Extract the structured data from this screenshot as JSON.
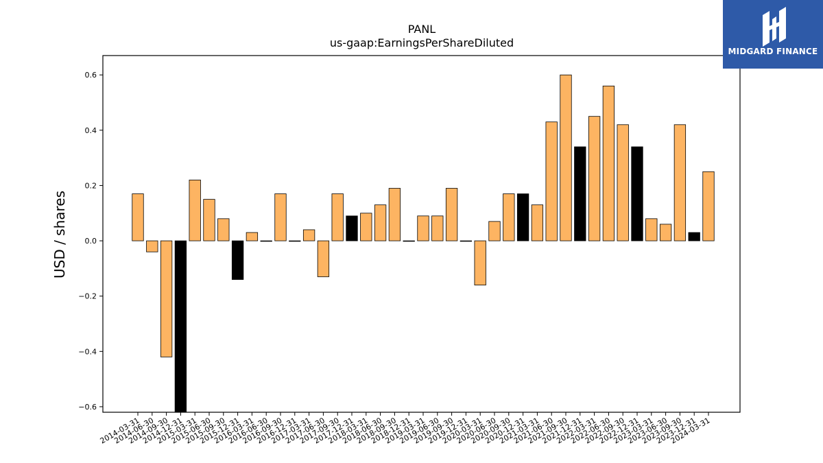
{
  "chart_data": {
    "type": "bar",
    "title": "PANL",
    "subtitle": "us-gaap:EarningsPerShareDiluted",
    "xlabel": "",
    "ylabel": "USD / shares",
    "ylim": [
      -0.62,
      0.67
    ],
    "yticks": [
      -0.6,
      -0.4,
      -0.2,
      0.0,
      0.2,
      0.4,
      0.6
    ],
    "ytick_labels": [
      "−0.6",
      "−0.4",
      "−0.2",
      "0.0",
      "0.2",
      "0.4",
      "0.6"
    ],
    "grid": false,
    "colors": {
      "quarterly": "#fdb462",
      "annual": "#000000",
      "edge": "#000000"
    },
    "categories": [
      "2014-03-31",
      "2014-06-30",
      "2014-09-30",
      "2014-12-31",
      "2015-03-31",
      "2015-06-30",
      "2015-09-30",
      "2015-12-31",
      "2016-03-31",
      "2016-06-30",
      "2016-09-30",
      "2016-12-31",
      "2017-03-31",
      "2017-06-30",
      "2017-09-30",
      "2017-12-31",
      "2018-03-31",
      "2018-06-30",
      "2018-09-30",
      "2018-12-31",
      "2019-03-31",
      "2019-06-30",
      "2019-09-30",
      "2019-12-31",
      "2020-03-31",
      "2020-06-30",
      "2020-09-30",
      "2020-12-31",
      "2021-03-31",
      "2021-06-30",
      "2021-09-30",
      "2021-12-31",
      "2022-03-31",
      "2022-06-30",
      "2022-09-30",
      "2022-12-31",
      "2023-03-31",
      "2023-06-30",
      "2023-09-30",
      "2023-12-31",
      "2024-03-31"
    ],
    "values": [
      0.17,
      -0.04,
      -0.42,
      -0.62,
      0.22,
      0.15,
      0.08,
      -0.14,
      0.03,
      0.0,
      0.17,
      0.0,
      0.04,
      -0.13,
      0.17,
      0.09,
      0.1,
      0.13,
      0.19,
      0.0,
      0.09,
      0.09,
      0.19,
      0.0,
      -0.16,
      0.07,
      0.17,
      0.17,
      0.13,
      0.43,
      0.6,
      0.34,
      0.45,
      0.56,
      0.42,
      0.34,
      0.08,
      0.06,
      0.42,
      0.03,
      0.25
    ],
    "annual": [
      false,
      false,
      false,
      true,
      false,
      false,
      false,
      true,
      false,
      false,
      false,
      true,
      false,
      false,
      false,
      true,
      false,
      false,
      false,
      true,
      false,
      false,
      false,
      true,
      false,
      false,
      false,
      true,
      false,
      false,
      false,
      true,
      false,
      false,
      false,
      true,
      false,
      false,
      false,
      true,
      false
    ]
  },
  "branding": {
    "logo_text": "MIDGARD FINANCE",
    "logo_icon": "midgard-logo-icon",
    "background_color": "#2e5aa8"
  }
}
